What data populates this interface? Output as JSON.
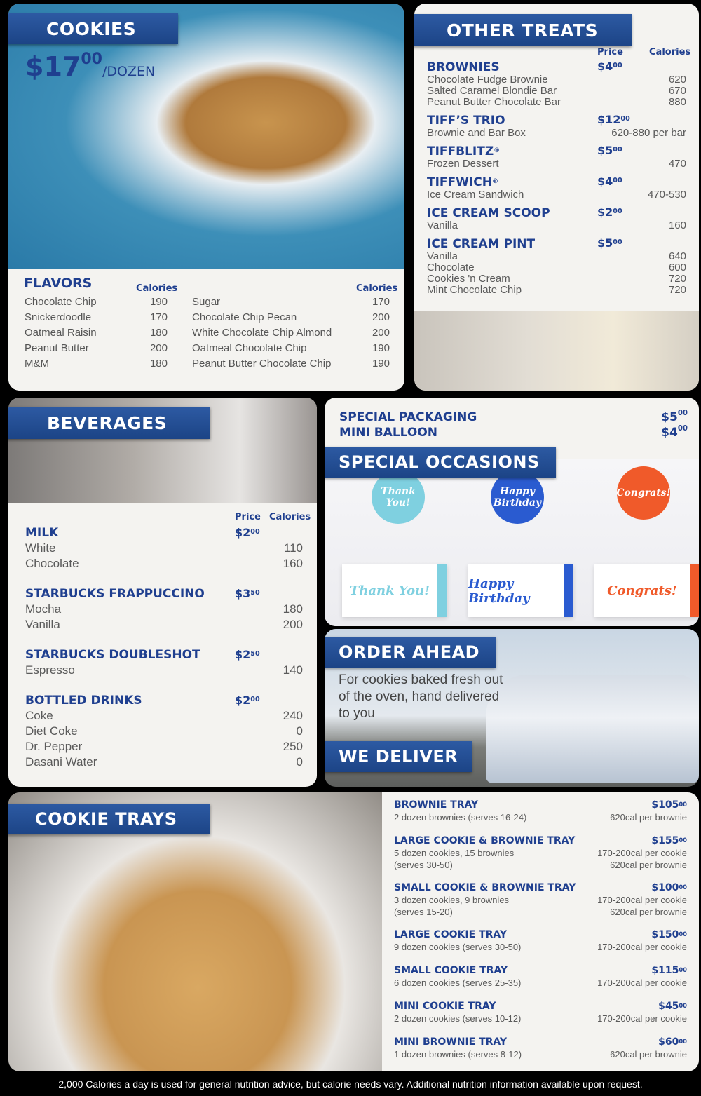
{
  "cookies": {
    "title": "COOKIES",
    "price": {
      "dollars": "$17",
      "cents": "00"
    },
    "unit": "/DOZEN",
    "flavors_title": "FLAVORS",
    "calories_label": "Calories",
    "flavors_left": [
      {
        "name": "Chocolate Chip",
        "cal": "190"
      },
      {
        "name": "Snickerdoodle",
        "cal": "170"
      },
      {
        "name": "Oatmeal Raisin",
        "cal": "180"
      },
      {
        "name": "Peanut Butter",
        "cal": "200"
      },
      {
        "name": "M&M",
        "cal": "180"
      }
    ],
    "flavors_right": [
      {
        "name": "Sugar",
        "cal": "170"
      },
      {
        "name": "Chocolate Chip Pecan",
        "cal": "200"
      },
      {
        "name": "White Chocolate Chip Almond",
        "cal": "200"
      },
      {
        "name": "Oatmeal Chocolate Chip",
        "cal": "190"
      },
      {
        "name": "Peanut Butter Chocolate Chip",
        "cal": "190"
      }
    ]
  },
  "other_treats": {
    "title": "OTHER TREATS",
    "price_label": "Price",
    "calories_label": "Calories",
    "items": [
      {
        "name": "BROWNIES",
        "reg": "",
        "dollars": "$4",
        "cents": "00",
        "subs": [
          {
            "name": "Chocolate Fudge Brownie",
            "cal": "620"
          },
          {
            "name": "Salted Caramel Blondie Bar",
            "cal": "670"
          },
          {
            "name": "Peanut Butter Chocolate Bar",
            "cal": "880"
          }
        ]
      },
      {
        "name": "TIFF’S TRIO",
        "reg": "",
        "dollars": "$12",
        "cents": "00",
        "subs": [
          {
            "name": "Brownie and Bar Box",
            "cal": "620-880 per bar"
          }
        ]
      },
      {
        "name": "TIFFBLITZ",
        "reg": "®",
        "dollars": "$5",
        "cents": "00",
        "subs": [
          {
            "name": "Frozen Dessert",
            "cal": "470"
          }
        ]
      },
      {
        "name": "TIFFWICH",
        "reg": "®",
        "dollars": "$4",
        "cents": "00",
        "subs": [
          {
            "name": "Ice Cream Sandwich",
            "cal": "470-530"
          }
        ]
      },
      {
        "name": "ICE CREAM SCOOP",
        "reg": "",
        "dollars": "$2",
        "cents": "00",
        "subs": [
          {
            "name": "Vanilla",
            "cal": "160"
          }
        ]
      },
      {
        "name": "ICE CREAM PINT",
        "reg": "",
        "dollars": "$5",
        "cents": "00",
        "subs": [
          {
            "name": "Vanilla",
            "cal": "640"
          },
          {
            "name": "Chocolate",
            "cal": "600"
          },
          {
            "name": "Cookies 'n Cream",
            "cal": "720"
          },
          {
            "name": "Mint Chocolate Chip",
            "cal": "720"
          }
        ]
      }
    ]
  },
  "beverages": {
    "title": "BEVERAGES",
    "price_label": "Price",
    "calories_label": "Calories",
    "items": [
      {
        "name": "MILK",
        "dollars": "$2",
        "cents": "00",
        "subs": [
          {
            "name": "White",
            "cal": "110"
          },
          {
            "name": "Chocolate",
            "cal": "160"
          }
        ]
      },
      {
        "name": "STARBUCKS FRAPPUCCINO",
        "dollars": "$3",
        "cents": "50",
        "subs": [
          {
            "name": "Mocha",
            "cal": "180"
          },
          {
            "name": "Vanilla",
            "cal": "200"
          }
        ]
      },
      {
        "name": "STARBUCKS DOUBLESHOT",
        "dollars": "$2",
        "cents": "50",
        "subs": [
          {
            "name": "Espresso",
            "cal": "140"
          }
        ]
      },
      {
        "name": "BOTTLED DRINKS",
        "dollars": "$2",
        "cents": "00",
        "subs": [
          {
            "name": "Coke",
            "cal": "240"
          },
          {
            "name": "Diet Coke",
            "cal": "0"
          },
          {
            "name": "Dr. Pepper",
            "cal": "250"
          },
          {
            "name": "Dasani Water",
            "cal": "0"
          }
        ]
      }
    ]
  },
  "packaging": [
    {
      "name": "SPECIAL PACKAGING",
      "dollars": "$5",
      "cents": "00"
    },
    {
      "name": "MINI BALLOON",
      "dollars": "$4",
      "cents": "00"
    }
  ],
  "special_occasions": {
    "title": "SPECIAL OCCASIONS",
    "balloons": [
      "Thank You!",
      "Happy Birthday",
      "Congrats!"
    ],
    "balloon_colors": [
      "#7fd0e0",
      "#2a5bd0",
      "#f05a2a"
    ]
  },
  "order_ahead": {
    "title": "ORDER AHEAD",
    "text": "For cookies baked fresh out of the oven, hand delivered to you",
    "deliver": "WE DELIVER"
  },
  "cookie_trays": {
    "title": "COOKIE TRAYS",
    "items": [
      {
        "name": "BROWNIE TRAY",
        "dollars": "$105",
        "cents": "00",
        "desc": [
          "2 dozen brownies (serves 16-24)"
        ],
        "cal": [
          "620cal per brownie"
        ]
      },
      {
        "name": "LARGE COOKIE & BROWNIE TRAY",
        "dollars": "$155",
        "cents": "00",
        "desc": [
          "5 dozen cookies, 15 brownies",
          "(serves 30-50)"
        ],
        "cal": [
          "170-200cal per cookie",
          "620cal per brownie"
        ]
      },
      {
        "name": "SMALL COOKIE & BROWNIE TRAY",
        "dollars": "$100",
        "cents": "00",
        "desc": [
          "3 dozen cookies, 9 brownies",
          "(serves 15-20)"
        ],
        "cal": [
          "170-200cal per cookie",
          "620cal per brownie"
        ]
      },
      {
        "name": "LARGE COOKIE TRAY",
        "dollars": "$150",
        "cents": "00",
        "desc": [
          "9 dozen cookies (serves 30-50)"
        ],
        "cal": [
          "170-200cal per cookie"
        ]
      },
      {
        "name": "SMALL COOKIE TRAY",
        "dollars": "$115",
        "cents": "00",
        "desc": [
          "6 dozen cookies (serves 25-35)"
        ],
        "cal": [
          "170-200cal per cookie"
        ]
      },
      {
        "name": "MINI COOKIE TRAY",
        "dollars": "$45",
        "cents": "00",
        "desc": [
          "2 dozen cookies (serves 10-12)"
        ],
        "cal": [
          "170-200cal per cookie"
        ]
      },
      {
        "name": "MINI BROWNIE TRAY",
        "dollars": "$60",
        "cents": "00",
        "desc": [
          "1 dozen brownies (serves 8-12)"
        ],
        "cal": [
          "620cal per brownie"
        ]
      }
    ]
  },
  "footer": "2,000 Calories a day is used for general nutrition advice, but calorie needs vary. Additional nutrition information available upon request."
}
